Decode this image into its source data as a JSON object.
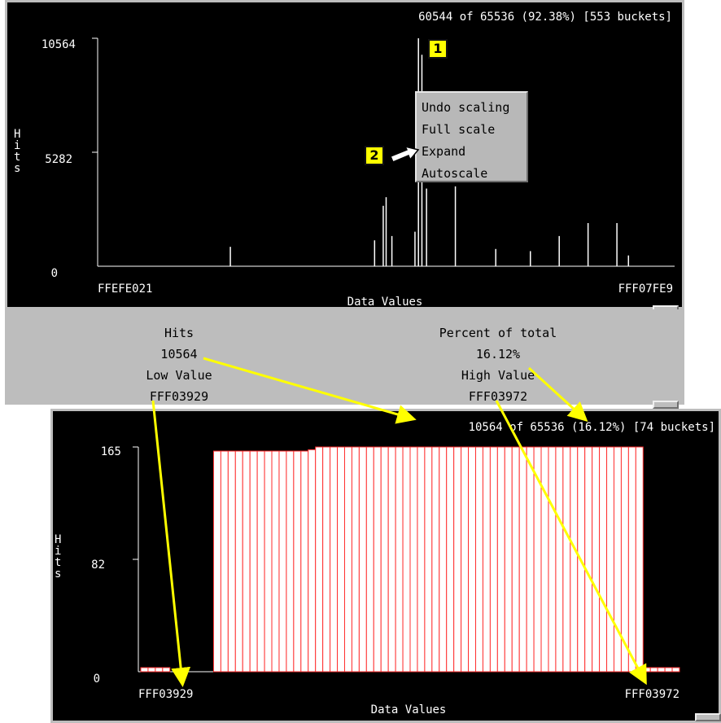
{
  "top_chart": {
    "summary": "60544 of 65536 (92.38%) [553 buckets]",
    "y_ticks": [
      "10564",
      "5282",
      "0"
    ],
    "y_label_letters": [
      "H",
      "i",
      "t",
      "s"
    ],
    "x_start": "FFEFE021",
    "x_end": "FFF07FE9",
    "x_label": "Data Values"
  },
  "context_menu": {
    "items": [
      "Undo scaling",
      "Full scale",
      "Expand",
      "Autoscale"
    ]
  },
  "callouts": {
    "one": "1",
    "two": "2"
  },
  "info": {
    "hits_label": "Hits",
    "hits_value": "10564",
    "low_label": "Low Value",
    "low_value": "FFF03929",
    "percent_label": "Percent of total",
    "percent_value": "16.12%",
    "high_label": "High Value",
    "high_value": "FFF03972"
  },
  "bottom_chart": {
    "summary": "10564 of 65536 (16.12%) [74 buckets]",
    "y_ticks": [
      "165",
      "82",
      "0"
    ],
    "y_label_letters": [
      "H",
      "i",
      "t",
      "s"
    ],
    "x_start": "FFF03929",
    "x_end": "FFF03972",
    "x_label": "Data Values",
    "bar_color": "#ff3030"
  },
  "chart_data": [
    {
      "type": "bar",
      "title": "60544 of 65536 (92.38%) [553 buckets]",
      "xlabel": "Data Values",
      "ylabel": "Hits",
      "x_range": [
        "FFEFE021",
        "FFF07FE9"
      ],
      "ylim": [
        0,
        10564
      ],
      "peaks": [
        {
          "x_frac": 0.23,
          "value": 900
        },
        {
          "x_frac": 0.48,
          "value": 1200
        },
        {
          "x_frac": 0.495,
          "value": 2800
        },
        {
          "x_frac": 0.5,
          "value": 3200
        },
        {
          "x_frac": 0.51,
          "value": 1400
        },
        {
          "x_frac": 0.55,
          "value": 1600
        },
        {
          "x_frac": 0.556,
          "value": 10564
        },
        {
          "x_frac": 0.562,
          "value": 9800
        },
        {
          "x_frac": 0.57,
          "value": 3600
        },
        {
          "x_frac": 0.62,
          "value": 3700
        },
        {
          "x_frac": 0.69,
          "value": 800
        },
        {
          "x_frac": 0.75,
          "value": 700
        },
        {
          "x_frac": 0.8,
          "value": 1400
        },
        {
          "x_frac": 0.85,
          "value": 2000
        },
        {
          "x_frac": 0.9,
          "value": 2000
        },
        {
          "x_frac": 0.92,
          "value": 500
        }
      ]
    },
    {
      "type": "bar",
      "title": "10564 of 65536 (16.12%) [74 buckets]",
      "xlabel": "Data Values",
      "ylabel": "Hits",
      "x_range": [
        "FFF03929",
        "FFF03972"
      ],
      "ylim": [
        0,
        165
      ],
      "bucket_count": 74,
      "values": [
        3,
        3,
        3,
        3,
        0,
        0,
        0,
        0,
        0,
        0,
        162,
        162,
        162,
        162,
        162,
        162,
        162,
        162,
        162,
        162,
        162,
        162,
        162,
        163,
        165,
        165,
        165,
        165,
        165,
        165,
        165,
        165,
        165,
        165,
        165,
        165,
        165,
        165,
        165,
        165,
        165,
        165,
        165,
        165,
        165,
        165,
        165,
        165,
        165,
        165,
        165,
        165,
        165,
        165,
        165,
        165,
        165,
        165,
        165,
        165,
        165,
        165,
        165,
        165,
        165,
        165,
        165,
        165,
        165,
        3,
        3,
        3,
        3,
        3
      ]
    }
  ]
}
